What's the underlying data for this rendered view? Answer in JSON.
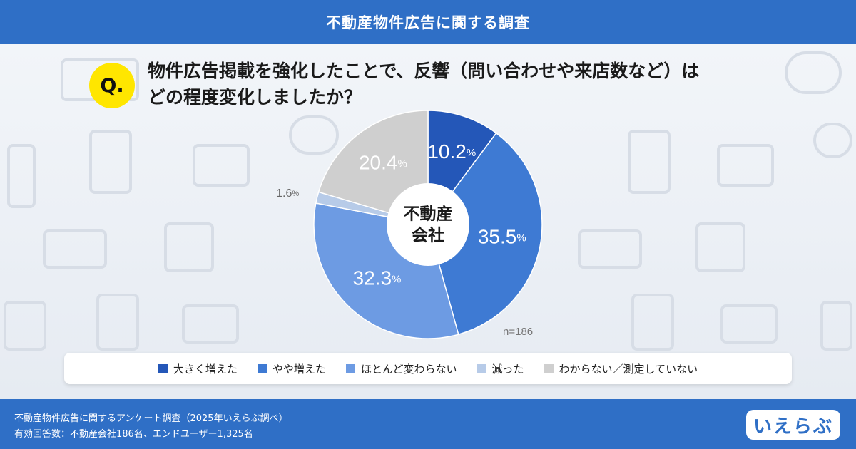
{
  "header": {
    "title": "不動産物件広告に関する調査"
  },
  "question": {
    "badge": "Q.",
    "line1": "物件広告掲載を強化したことで、反響（問い合わせや来店数など）は",
    "line2": "どの程度変化しましたか？"
  },
  "chart_data": {
    "type": "pie",
    "center_label": [
      "不動産",
      "会社"
    ],
    "n_label": "n=186",
    "percent_unit": "%",
    "categories": [
      "大きく増えた",
      "やや増えた",
      "ほとんど変わらない",
      "減った",
      "わからない／測定していない"
    ],
    "values": [
      10.2,
      35.5,
      32.3,
      1.6,
      20.4
    ],
    "colors": [
      "#2457b8",
      "#3e7ad3",
      "#6d9be3",
      "#b7cbe8",
      "#cfcfcf"
    ],
    "label_colors": [
      "#ffffff",
      "#ffffff",
      "#ffffff",
      "#666666",
      "#ffffff"
    ],
    "legend_placement": "bottom"
  },
  "legend": {
    "items": [
      {
        "label": "大きく増えた",
        "color": "#2457b8"
      },
      {
        "label": "やや増えた",
        "color": "#3e7ad3"
      },
      {
        "label": "ほとんど変わらない",
        "color": "#6d9be3"
      },
      {
        "label": "減った",
        "color": "#b7cbe8"
      },
      {
        "label": "わからない／測定していない",
        "color": "#cfcfcf"
      }
    ]
  },
  "footer": {
    "line1": "不動産物件広告に関するアンケート調査（2025年いえらぶ調べ）",
    "line2": "有効回答数：不動産会社186名、エンドユーザー1,325名",
    "logo": "いえらぶ"
  }
}
